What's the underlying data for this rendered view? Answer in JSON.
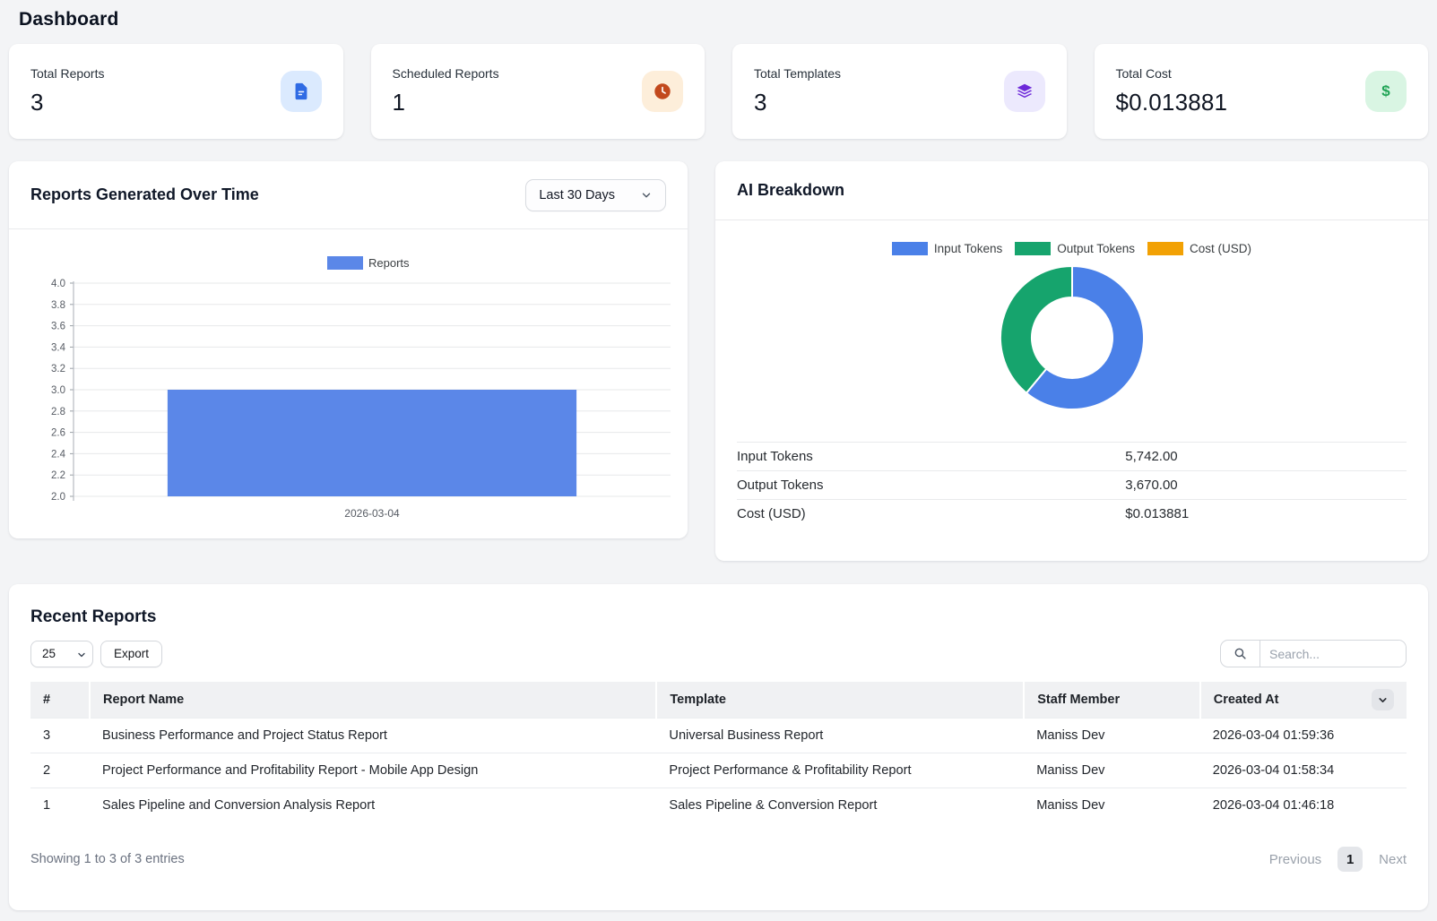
{
  "page": {
    "title": "Dashboard"
  },
  "stats": [
    {
      "label": "Total Reports",
      "value": "3",
      "icon": "file-icon",
      "icon_color": "#2f6be4",
      "icon_bg": "#dbeafe"
    },
    {
      "label": "Scheduled Reports",
      "value": "1",
      "icon": "clock-icon",
      "icon_color": "#c2491d",
      "icon_bg": "#fdeeda"
    },
    {
      "label": "Total Templates",
      "value": "3",
      "icon": "layers-icon",
      "icon_color": "#6d28d9",
      "icon_bg": "#ece9fd"
    },
    {
      "label": "Total Cost",
      "value": "$0.013881",
      "icon": "dollar-icon",
      "icon_color": "#21a456",
      "icon_bg": "#d9f5e3"
    }
  ],
  "reports_chart": {
    "title": "Reports Generated Over Time",
    "range_selector": "Last 30 Days"
  },
  "ai_breakdown": {
    "title": "AI Breakdown",
    "rows": [
      {
        "label": "Input Tokens",
        "value": "5,742.00"
      },
      {
        "label": "Output Tokens",
        "value": "3,670.00"
      },
      {
        "label": "Cost (USD)",
        "value": "$0.013881"
      }
    ]
  },
  "chart_data": [
    {
      "type": "bar",
      "title": "Reports Generated Over Time",
      "categories": [
        "2026-03-04"
      ],
      "series": [
        {
          "name": "Reports",
          "values": [
            3
          ]
        }
      ],
      "xlabel": "",
      "ylabel": "",
      "ylim": [
        2.0,
        4.0
      ],
      "ytick_step": 0.2,
      "grid": true,
      "legend_position": "top",
      "bar_color": "#5b87e8"
    },
    {
      "type": "pie",
      "donut": true,
      "title": "AI Breakdown",
      "labels": [
        "Input Tokens",
        "Output Tokens",
        "Cost (USD)"
      ],
      "values": [
        5742.0,
        3670.0,
        0.013881
      ],
      "colors": [
        "#4a80e8",
        "#16a46d",
        "#f2a104"
      ],
      "legend_position": "top"
    }
  ],
  "recent": {
    "title": "Recent Reports",
    "page_size": "25",
    "export_label": "Export",
    "search_placeholder": "Search...",
    "columns": [
      "#",
      "Report Name",
      "Template",
      "Staff Member",
      "Created At"
    ],
    "rows": [
      {
        "num": "3",
        "name": "Business Performance and Project Status Report",
        "template": "Universal Business Report",
        "staff": "Maniss Dev",
        "created": "2026-03-04 01:59:36"
      },
      {
        "num": "2",
        "name": "Project Performance and Profitability Report - Mobile App Design",
        "template": "Project Performance & Profitability Report",
        "staff": "Maniss Dev",
        "created": "2026-03-04 01:58:34"
      },
      {
        "num": "1",
        "name": "Sales Pipeline and Conversion Analysis Report",
        "template": "Sales Pipeline & Conversion Report",
        "staff": "Maniss Dev",
        "created": "2026-03-04 01:46:18"
      }
    ],
    "footer": "Showing 1 to 3 of 3 entries",
    "pagination": {
      "previous": "Previous",
      "page": "1",
      "next": "Next"
    }
  }
}
